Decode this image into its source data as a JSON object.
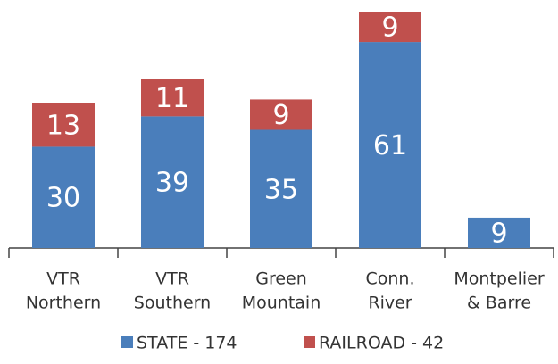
{
  "chart_data": {
    "type": "stacked_bar",
    "categories": [
      [
        "VTR",
        "Northern"
      ],
      [
        "VTR",
        "Southern"
      ],
      [
        "Green",
        "Mountain"
      ],
      [
        "Conn.",
        "River"
      ],
      [
        "Montpelier",
        "& Barre"
      ]
    ],
    "series": [
      {
        "name": "STATE - 174",
        "color": "#4a7ebb",
        "values": [
          30,
          39,
          35,
          61,
          9
        ]
      },
      {
        "name": "RAILROAD - 42",
        "color": "#c0504d",
        "values": [
          13,
          11,
          9,
          9,
          null
        ]
      }
    ],
    "ylim": [
      0,
      70
    ]
  }
}
